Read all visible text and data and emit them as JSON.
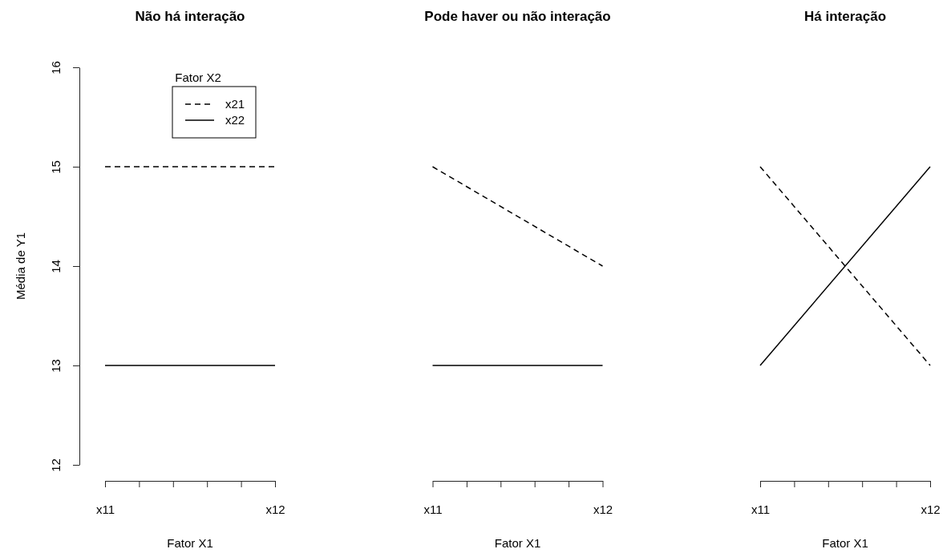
{
  "chart_data": [
    {
      "type": "line",
      "title": "Não há interação",
      "xlabel": "Fator X1",
      "ylabel": "Média de Y1",
      "legend_title": "Fator X2",
      "legend": "top",
      "categories": [
        "x11",
        "x12"
      ],
      "ylim": [
        12,
        16
      ],
      "yticks": [
        12,
        13,
        14,
        15,
        16
      ],
      "marker": "none",
      "series": [
        {
          "name": "x21",
          "color": "#000000",
          "line_style": "dashed",
          "values": [
            15,
            15
          ]
        },
        {
          "name": "x22",
          "color": "#000000",
          "line_style": "solid",
          "values": [
            13,
            13
          ]
        }
      ]
    },
    {
      "type": "line",
      "title": "Pode haver ou não interação",
      "xlabel": "Fator X1",
      "categories": [
        "x11",
        "x12"
      ],
      "ylim": [
        12,
        16
      ],
      "tick_labels": "x",
      "marker": "none",
      "series": [
        {
          "color": "#000000",
          "line_style": "dashed",
          "values": [
            15,
            14
          ]
        },
        {
          "color": "#000000",
          "line_style": "solid",
          "values": [
            13,
            13
          ]
        }
      ]
    },
    {
      "type": "line",
      "title": "Há interação",
      "xlabel": "Fator X1",
      "categories": [
        "x11",
        "x12"
      ],
      "ylim": [
        12,
        16
      ],
      "tick_labels": "x",
      "marker": "none",
      "series": [
        {
          "color": "#000000",
          "line_style": "dashed",
          "values": [
            15,
            13
          ]
        },
        {
          "color": "#000000",
          "line_style": "solid",
          "values": [
            13,
            15
          ]
        }
      ]
    }
  ]
}
